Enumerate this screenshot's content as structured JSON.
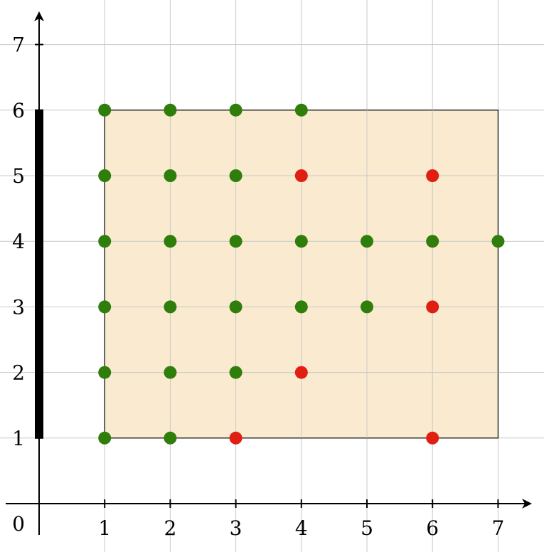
{
  "chart_data": {
    "type": "scatter",
    "title": "",
    "xlabel": "",
    "ylabel": "",
    "xlim": [
      0,
      7
    ],
    "ylim": [
      0,
      7
    ],
    "origin_label": "0",
    "x_tick_labels": [
      "1",
      "2",
      "3",
      "4",
      "5",
      "6",
      "7"
    ],
    "y_tick_labels": [
      "1",
      "2",
      "3",
      "4",
      "5",
      "6",
      "7"
    ],
    "x_ticks": [
      1,
      2,
      3,
      4,
      5,
      6,
      7
    ],
    "y_ticks": [
      1,
      2,
      3,
      4,
      5,
      6,
      7
    ],
    "grid": true,
    "region": {
      "x": [
        1,
        7
      ],
      "y": [
        1,
        6
      ],
      "fill": "#faebd0"
    },
    "segment": {
      "x": 0,
      "y": [
        1,
        6
      ],
      "color": "#000000"
    },
    "colors": {
      "green": "#2f7d0a",
      "red": "#e01e12"
    },
    "points": [
      {
        "x": 1,
        "y": 6,
        "color": "green"
      },
      {
        "x": 2,
        "y": 6,
        "color": "green"
      },
      {
        "x": 3,
        "y": 6,
        "color": "green"
      },
      {
        "x": 4,
        "y": 6,
        "color": "green"
      },
      {
        "x": 1,
        "y": 5,
        "color": "green"
      },
      {
        "x": 2,
        "y": 5,
        "color": "green"
      },
      {
        "x": 3,
        "y": 5,
        "color": "green"
      },
      {
        "x": 4,
        "y": 5,
        "color": "red"
      },
      {
        "x": 6,
        "y": 5,
        "color": "red"
      },
      {
        "x": 1,
        "y": 4,
        "color": "green"
      },
      {
        "x": 2,
        "y": 4,
        "color": "green"
      },
      {
        "x": 3,
        "y": 4,
        "color": "green"
      },
      {
        "x": 4,
        "y": 4,
        "color": "green"
      },
      {
        "x": 5,
        "y": 4,
        "color": "green"
      },
      {
        "x": 6,
        "y": 4,
        "color": "green"
      },
      {
        "x": 7,
        "y": 4,
        "color": "green"
      },
      {
        "x": 1,
        "y": 3,
        "color": "green"
      },
      {
        "x": 2,
        "y": 3,
        "color": "green"
      },
      {
        "x": 3,
        "y": 3,
        "color": "green"
      },
      {
        "x": 4,
        "y": 3,
        "color": "green"
      },
      {
        "x": 5,
        "y": 3,
        "color": "green"
      },
      {
        "x": 6,
        "y": 3,
        "color": "red"
      },
      {
        "x": 1,
        "y": 2,
        "color": "green"
      },
      {
        "x": 2,
        "y": 2,
        "color": "green"
      },
      {
        "x": 3,
        "y": 2,
        "color": "green"
      },
      {
        "x": 4,
        "y": 2,
        "color": "red"
      },
      {
        "x": 1,
        "y": 1,
        "color": "green"
      },
      {
        "x": 2,
        "y": 1,
        "color": "green"
      },
      {
        "x": 3,
        "y": 1,
        "color": "red"
      },
      {
        "x": 6,
        "y": 1,
        "color": "red"
      }
    ]
  }
}
